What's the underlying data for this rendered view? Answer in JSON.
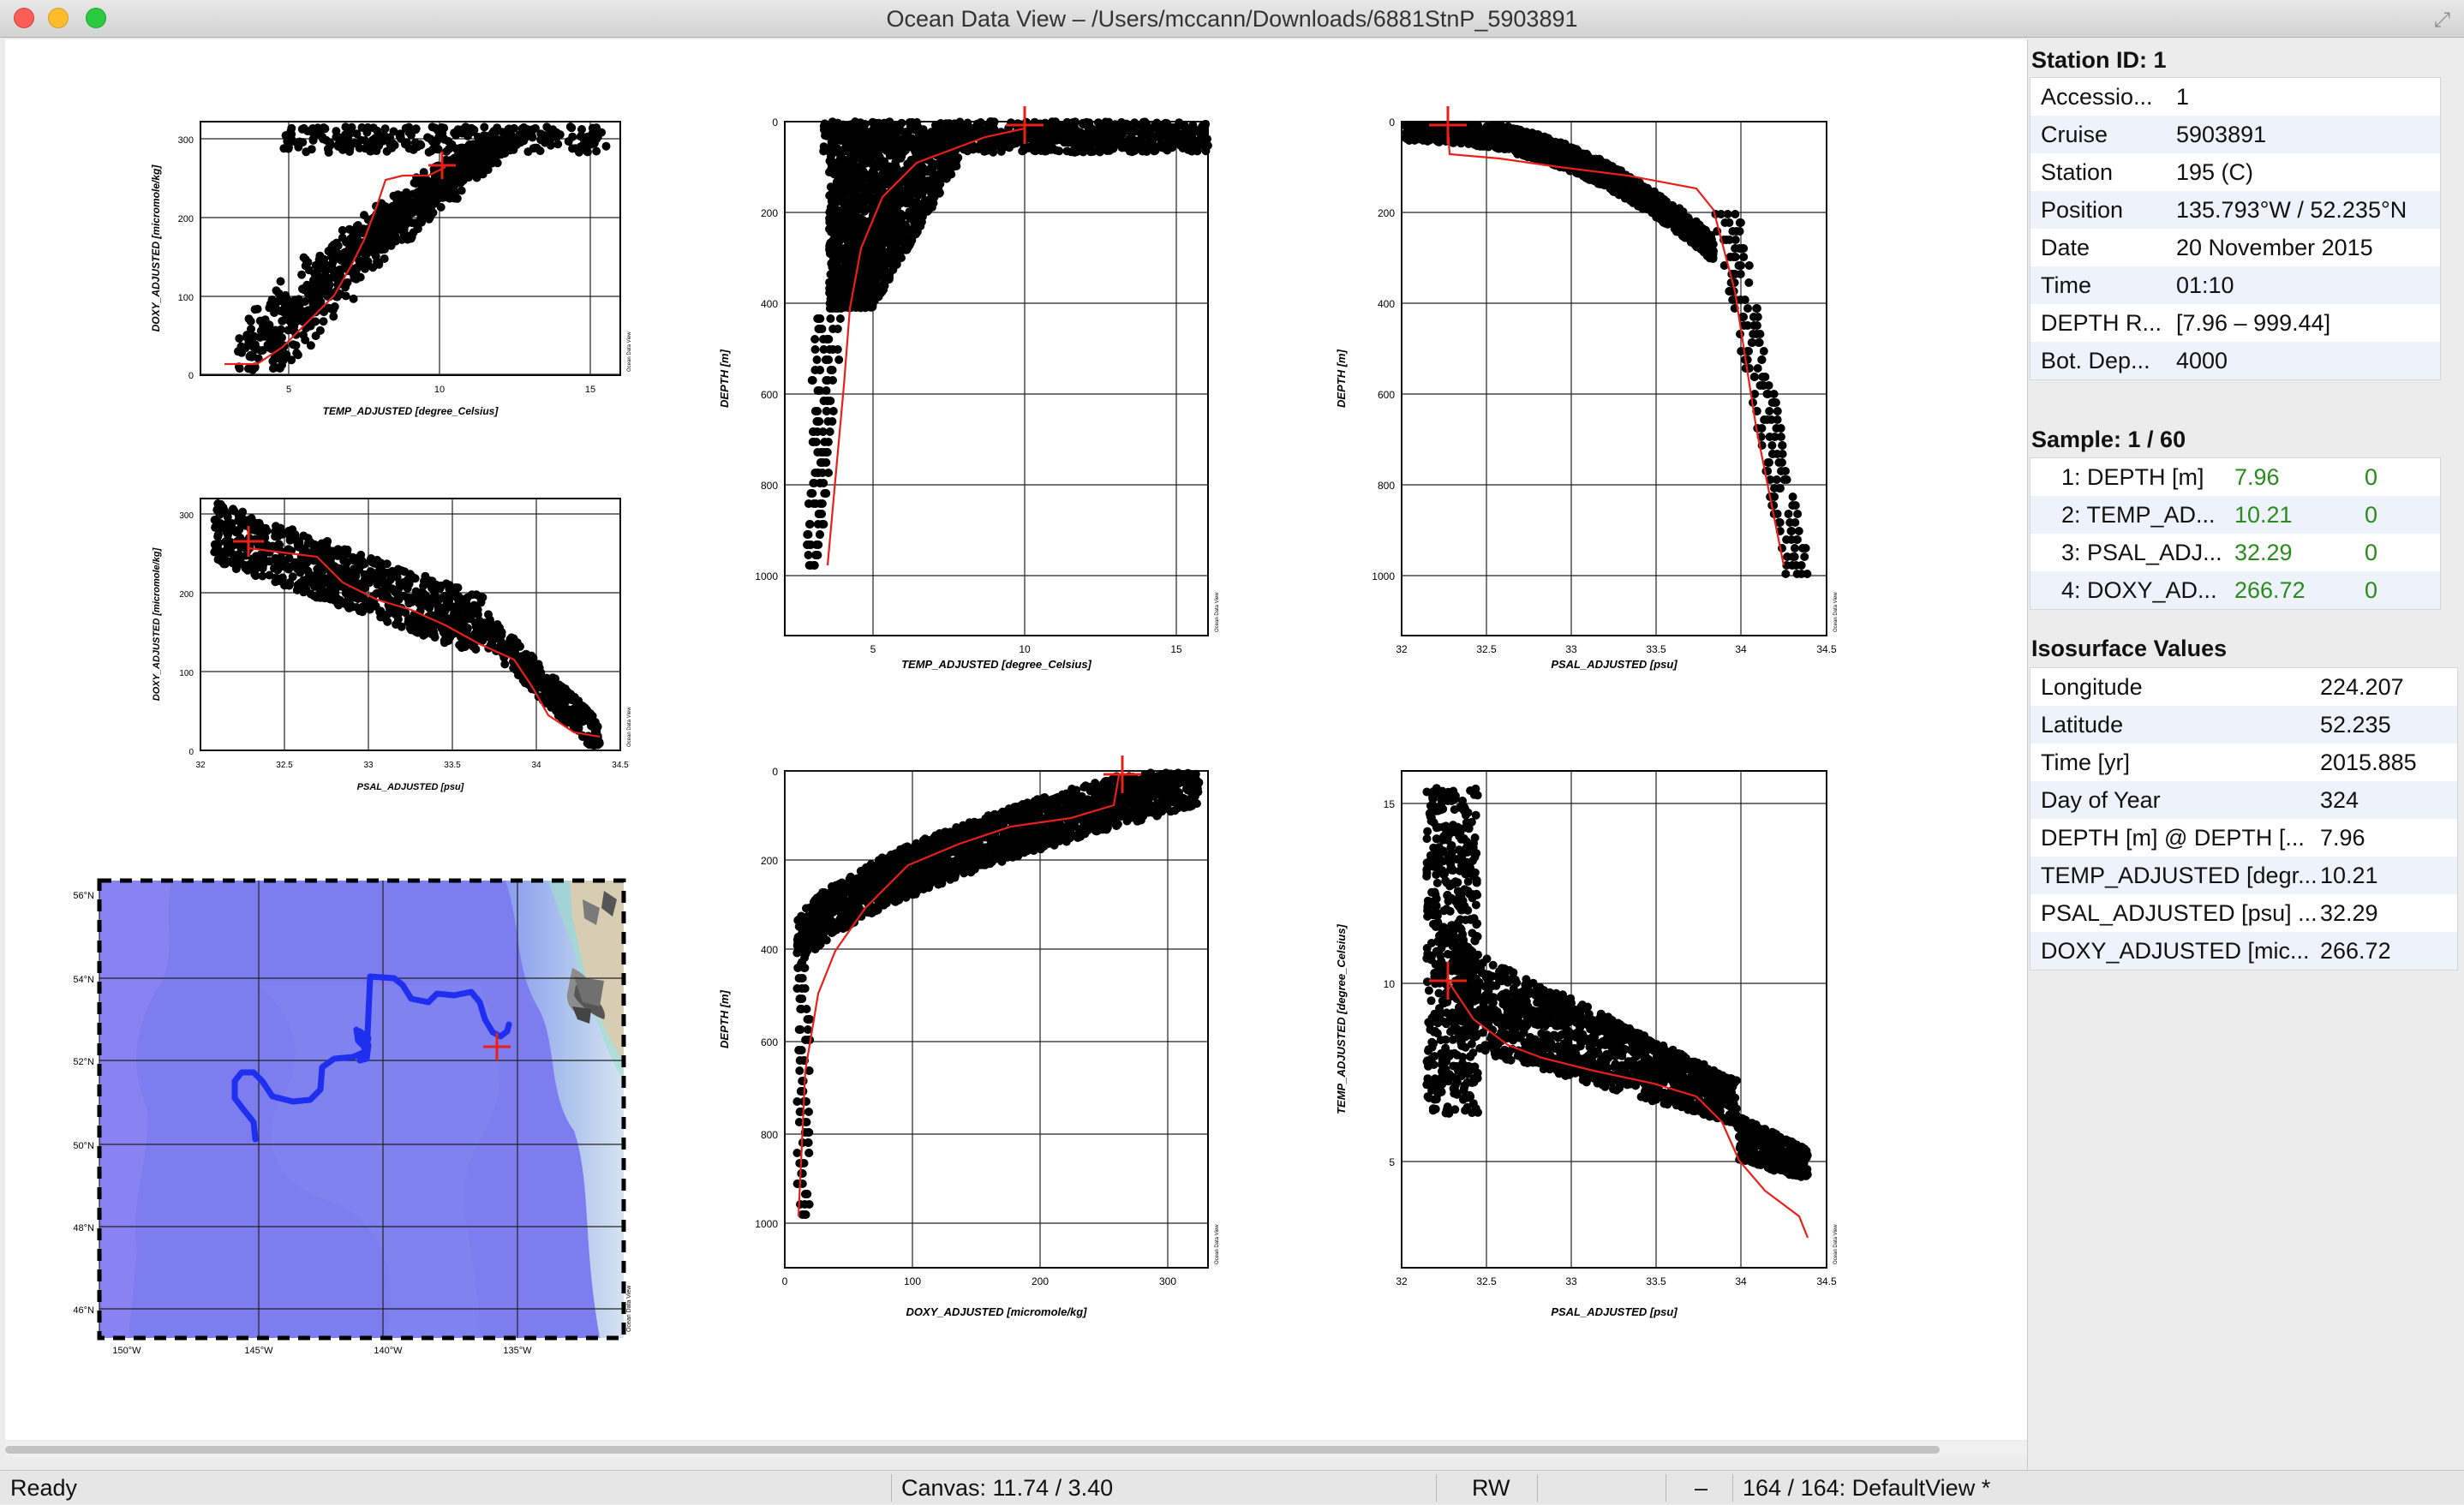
{
  "window": {
    "title": "Ocean Data View – /Users/mccann/Downloads/6881StnP_5903891"
  },
  "plots": {
    "doxy_vs_temp": {
      "xlabel": "TEMP_ADJUSTED [degree_Celsius]",
      "ylabel": "DOXY_ADJUSTED [micromole/kg]",
      "xticks": [
        "5",
        "10",
        "15"
      ],
      "yticks": [
        "0",
        "100",
        "200",
        "300"
      ],
      "credit": "Ocean Data View"
    },
    "doxy_vs_psal": {
      "xlabel": "PSAL_ADJUSTED [psu]",
      "ylabel": "DOXY_ADJUSTED [micromole/kg]",
      "xticks": [
        "32",
        "32.5",
        "33",
        "33.5",
        "34",
        "34.5"
      ],
      "yticks": [
        "0",
        "100",
        "200",
        "300"
      ],
      "credit": "Ocean Data View"
    },
    "map": {
      "lat_labels": [
        "56°N",
        "54°N",
        "52°N",
        "50°N",
        "48°N",
        "46°N"
      ],
      "lon_labels": [
        "150°W",
        "145°W",
        "140°W",
        "135°W"
      ],
      "credit": "Ocean Data View"
    },
    "depth_vs_temp": {
      "xlabel": "TEMP_ADJUSTED [degree_Celsius]",
      "ylabel": "DEPTH [m]",
      "xticks": [
        "5",
        "10",
        "15"
      ],
      "yticks": [
        "0",
        "200",
        "400",
        "600",
        "800",
        "1000"
      ],
      "credit": "Ocean Data View"
    },
    "depth_vs_doxy": {
      "xlabel": "DOXY_ADJUSTED [micromole/kg]",
      "ylabel": "DEPTH [m]",
      "xticks": [
        "0",
        "100",
        "200",
        "300"
      ],
      "yticks": [
        "0",
        "200",
        "400",
        "600",
        "800",
        "1000"
      ],
      "credit": "Ocean Data View"
    },
    "depth_vs_psal": {
      "xlabel": "PSAL_ADJUSTED [psu]",
      "ylabel": "DEPTH [m]",
      "xticks": [
        "32",
        "32.5",
        "33",
        "33.5",
        "34",
        "34.5"
      ],
      "yticks": [
        "0",
        "200",
        "400",
        "600",
        "800",
        "1000"
      ],
      "credit": "Ocean Data View"
    },
    "temp_vs_psal": {
      "xlabel": "PSAL_ADJUSTED [psu]",
      "ylabel": "TEMP_ADJUSTED [degree_Celsius]",
      "xticks": [
        "32",
        "32.5",
        "33",
        "33.5",
        "34",
        "34.5"
      ],
      "yticks": [
        "15",
        "10",
        "5"
      ],
      "credit": "Ocean Data View"
    }
  },
  "station": {
    "header": "Station ID: 1",
    "rows": [
      {
        "key": "Accessio...",
        "value": "1"
      },
      {
        "key": "Cruise",
        "value": "5903891"
      },
      {
        "key": "Station",
        "value": "195 (C)"
      },
      {
        "key": "Position",
        "value": "135.793°W / 52.235°N"
      },
      {
        "key": "Date",
        "value": "20 November 2015"
      },
      {
        "key": "Time",
        "value": "01:10"
      },
      {
        "key": "DEPTH R...",
        "value": "[7.96 – 999.44]"
      },
      {
        "key": "Bot. Dep...",
        "value": "4000"
      }
    ]
  },
  "sample": {
    "header": "Sample: 1 / 60",
    "rows": [
      {
        "key": "1: DEPTH [m]",
        "value": "7.96",
        "flag": "0"
      },
      {
        "key": "2: TEMP_AD...",
        "value": "10.21",
        "flag": "0"
      },
      {
        "key": "3: PSAL_ADJ...",
        "value": "32.29",
        "flag": "0"
      },
      {
        "key": "4: DOXY_AD...",
        "value": "266.72",
        "flag": "0"
      }
    ]
  },
  "isosurface": {
    "header": "Isosurface Values",
    "rows": [
      {
        "key": "Longitude",
        "value": "224.207"
      },
      {
        "key": "Latitude",
        "value": "52.235"
      },
      {
        "key": "Time [yr]",
        "value": "2015.885"
      },
      {
        "key": "Day of Year",
        "value": "324"
      },
      {
        "key": "DEPTH [m] @ DEPTH [...",
        "value": "7.96"
      },
      {
        "key": "TEMP_ADJUSTED [degr...",
        "value": "10.21"
      },
      {
        "key": "PSAL_ADJUSTED [psu] ...",
        "value": "32.29"
      },
      {
        "key": "DOXY_ADJUSTED [mic...",
        "value": "266.72"
      }
    ]
  },
  "status": {
    "ready": "Ready",
    "canvas": "Canvas:  11.74 / 3.40",
    "mode": "RW",
    "dash": "–",
    "view": "164 / 164: DefaultView *"
  },
  "colors": {
    "marker": "#e8201a",
    "points": "#000000",
    "ocean": "#7d7df0",
    "land": "#d6cdb3",
    "accent_green": "#2a8a1e"
  }
}
